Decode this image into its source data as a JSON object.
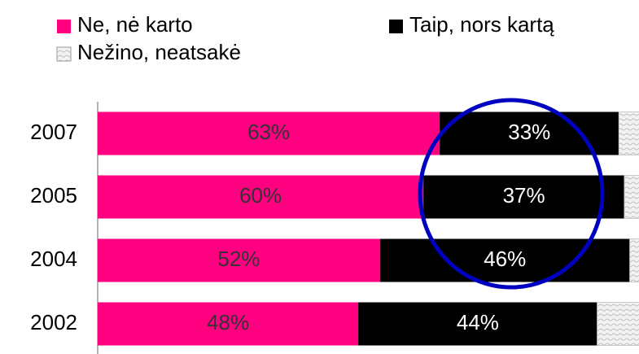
{
  "chart_data": {
    "type": "stacked-bar-horizontal",
    "categories": [
      "2007",
      "2005",
      "2004",
      "2002"
    ],
    "series": [
      {
        "name": "Ne, nė karto",
        "color": "#ff0080",
        "values": [
          63,
          60,
          52,
          48
        ],
        "value_labels": [
          "63%",
          "60%",
          "52%",
          "48%"
        ]
      },
      {
        "name": "Taip,  nors kartą",
        "color": "#000000",
        "values": [
          33,
          37,
          46,
          44
        ],
        "value_labels": [
          "33%",
          "37%",
          "46%",
          "44%"
        ]
      },
      {
        "name": "Nežino, neatsakė",
        "color": "#e6e6e6",
        "values": [
          4,
          3,
          2,
          8
        ]
      }
    ],
    "xlim": [
      0,
      100
    ]
  }
}
